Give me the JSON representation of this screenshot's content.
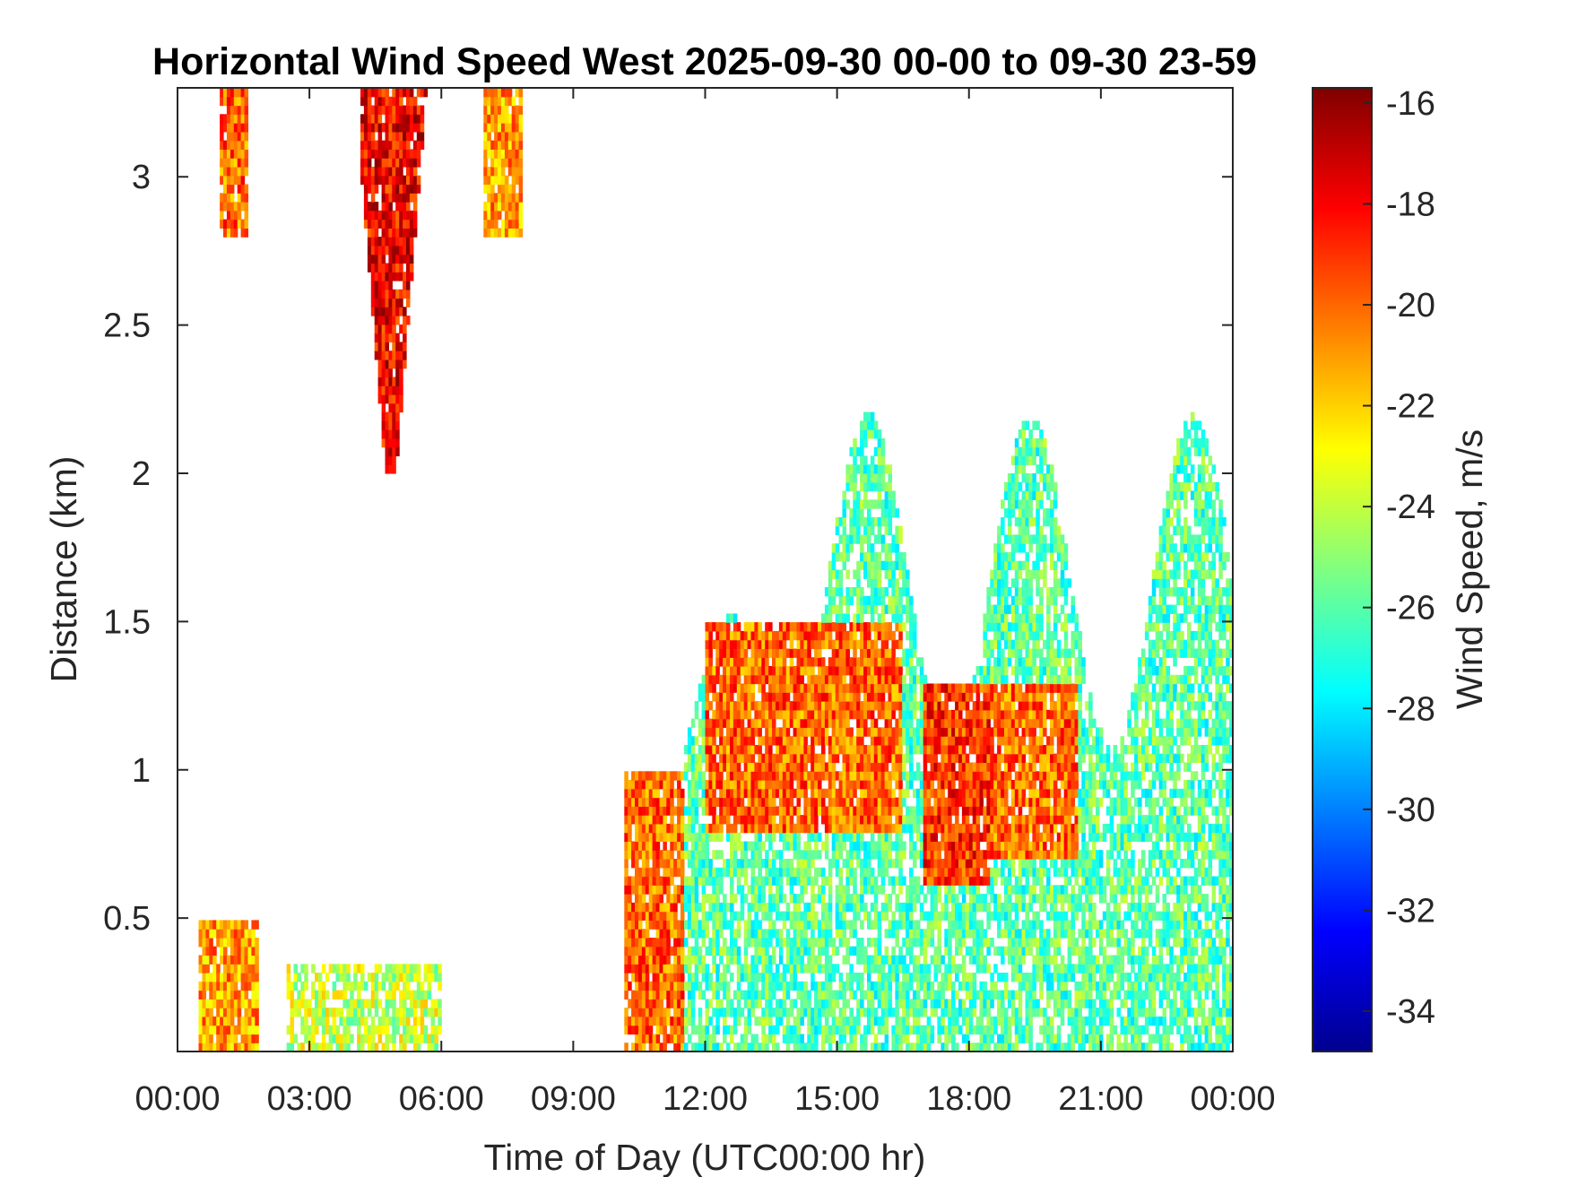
{
  "chart_data": {
    "type": "heatmap",
    "title": "Horizontal Wind Speed West 2025-09-30 00-00 to 09-30 23-59",
    "xlabel": "Time of Day (UTC00:00 hr)",
    "ylabel": "Distance (km)",
    "colorbar_label": "Wind Speed, m/s",
    "x_ticks": [
      "00:00",
      "03:00",
      "06:00",
      "09:00",
      "12:00",
      "15:00",
      "18:00",
      "21:00",
      "00:00"
    ],
    "x_range_hours": [
      0,
      24
    ],
    "y_ticks": [
      "0.5",
      "1",
      "1.5",
      "2",
      "2.5",
      "3"
    ],
    "y_tick_values": [
      0.5,
      1,
      1.5,
      2,
      2.5,
      3
    ],
    "y_range_km": [
      0.05,
      3.3
    ],
    "color_ticks": [
      "-16",
      "-18",
      "-20",
      "-22",
      "-24",
      "-26",
      "-28",
      "-30",
      "-32",
      "-34"
    ],
    "color_tick_values": [
      -16,
      -18,
      -20,
      -22,
      -24,
      -26,
      -28,
      -30,
      -32,
      -34
    ],
    "color_range": [
      -34.8,
      -15.7
    ],
    "colormap": "jet",
    "grid": false,
    "features": [
      {
        "region": "night low-level jet core",
        "hours": [
          0.5,
          1.8
        ],
        "km": [
          0.05,
          0.5
        ],
        "speed": -21
      },
      {
        "region": "night low-level band",
        "hours": [
          2.5,
          6.0
        ],
        "km": [
          0.05,
          0.35
        ],
        "speed": -24
      },
      {
        "region": "upper plume",
        "hours": [
          1.0,
          1.6
        ],
        "km": [
          2.8,
          3.3
        ],
        "speed": -20
      },
      {
        "region": "descending upper jet",
        "hours": [
          4.2,
          5.8
        ],
        "km": [
          2.0,
          3.3
        ],
        "speed": -18
      },
      {
        "region": "upper plume",
        "hours": [
          7.0,
          7.8
        ],
        "km": [
          2.8,
          3.3
        ],
        "speed": -21
      },
      {
        "region": "morning onset",
        "hours": [
          10.2,
          11.5
        ],
        "km": [
          0.05,
          1.0
        ],
        "speed": -20
      },
      {
        "region": "afternoon jet",
        "hours": [
          12.0,
          16.5
        ],
        "km": [
          0.8,
          1.5
        ],
        "speed": -20
      },
      {
        "region": "afternoon jet",
        "hours": [
          17.0,
          18.5
        ],
        "km": [
          0.6,
          1.3
        ],
        "speed": -19
      },
      {
        "region": "afternoon jet",
        "hours": [
          18.5,
          20.5
        ],
        "km": [
          0.7,
          1.3
        ],
        "speed": -20
      },
      {
        "region": "afternoon mixed layer",
        "hours": [
          11.0,
          24.0
        ],
        "km": [
          0.05,
          2.2
        ],
        "speed": -26
      }
    ]
  }
}
